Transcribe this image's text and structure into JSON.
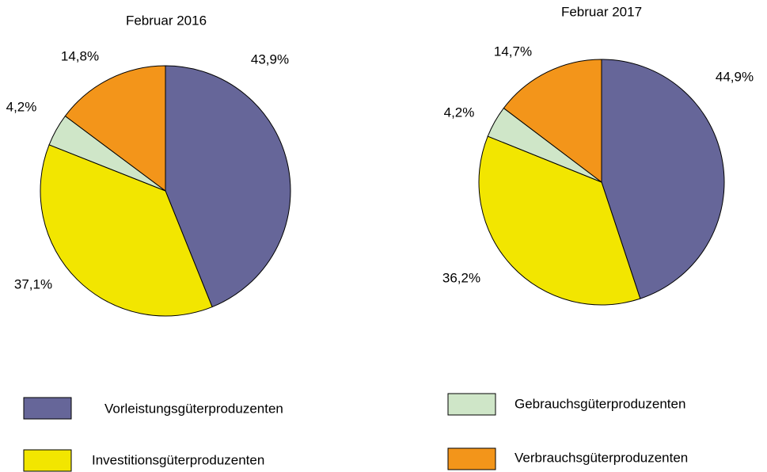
{
  "chart_data": [
    {
      "type": "pie",
      "title": "Februar 2016",
      "categories": [
        "Vorleistungsgüterproduzenten",
        "Investitionsgüterproduzenten",
        "Gebrauchsgüterproduzenten",
        "Verbrauchsgüterproduzenten"
      ],
      "values": [
        43.9,
        37.1,
        4.2,
        14.8
      ],
      "value_labels": [
        "43,9%",
        "37,1%",
        "4,2%",
        "14,8%"
      ],
      "colors": [
        "#666699",
        "#f2e600",
        "#cfe6c8",
        "#f3951a"
      ]
    },
    {
      "type": "pie",
      "title": "Februar 2017",
      "categories": [
        "Vorleistungsgüterproduzenten",
        "Investitionsgüterproduzenten",
        "Gebrauchsgüterproduzenten",
        "Verbrauchsgüterproduzenten"
      ],
      "values": [
        44.9,
        36.2,
        4.2,
        14.7
      ],
      "value_labels": [
        "44,9%",
        "36,2%",
        "4,2%",
        "14,7%"
      ],
      "colors": [
        "#666699",
        "#f2e600",
        "#cfe6c8",
        "#f3951a"
      ]
    }
  ]
}
